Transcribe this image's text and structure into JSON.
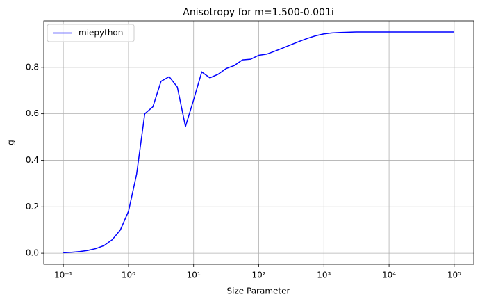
{
  "chart_data": {
    "type": "line",
    "title": "Anisotropy for m=1.500-0.001i",
    "x_label": "Size Parameter",
    "y_label": "g",
    "log_x": true,
    "grid": true,
    "legend": "upper left",
    "x": [
      0.1,
      0.1334,
      0.1778,
      0.2371,
      0.3162,
      0.4217,
      0.5623,
      0.7499,
      1,
      1.3335,
      1.7783,
      2.3714,
      3.1623,
      4.217,
      5.6234,
      7.4989,
      10,
      13.335,
      17.783,
      23.714,
      31.623,
      42.17,
      56.234,
      74.989,
      100,
      133.35,
      177.83,
      237.14,
      316.23,
      421.7,
      562.34,
      749.89,
      1000,
      1333.5,
      1778.3,
      2371.4,
      3162.3,
      4217,
      5623.4,
      7498.9,
      10000,
      13335,
      17783,
      23714,
      31623,
      42170,
      56234,
      74989,
      100000
    ],
    "series": [
      {
        "name": "miepython",
        "color": "#0000ff",
        "values": [
          0.002,
          0.004,
          0.007,
          0.012,
          0.02,
          0.033,
          0.058,
          0.1,
          0.18,
          0.34,
          0.6,
          0.63,
          0.74,
          0.76,
          0.715,
          0.545,
          0.66,
          0.78,
          0.755,
          0.77,
          0.795,
          0.808,
          0.832,
          0.835,
          0.852,
          0.857,
          0.87,
          0.884,
          0.898,
          0.912,
          0.925,
          0.936,
          0.944,
          0.948,
          0.95,
          0.951,
          0.952,
          0.952,
          0.952,
          0.952,
          0.952,
          0.952,
          0.952,
          0.952,
          0.952,
          0.952,
          0.952,
          0.952,
          0.952
        ]
      }
    ],
    "xlim": [
      0.0501,
      199526
    ],
    "ylim": [
      -0.0476,
      1.0
    ],
    "xticks": [
      {
        "value": 0.1,
        "label": "10⁻¹"
      },
      {
        "value": 1,
        "label": "10⁰"
      },
      {
        "value": 10,
        "label": "10¹"
      },
      {
        "value": 100,
        "label": "10²"
      },
      {
        "value": 1000,
        "label": "10³"
      },
      {
        "value": 10000,
        "label": "10⁴"
      },
      {
        "value": 100000,
        "label": "10⁵"
      }
    ],
    "yticks": [
      {
        "value": 0,
        "label": "0.0"
      },
      0.2,
      0.4,
      0.6,
      0.8
    ]
  }
}
